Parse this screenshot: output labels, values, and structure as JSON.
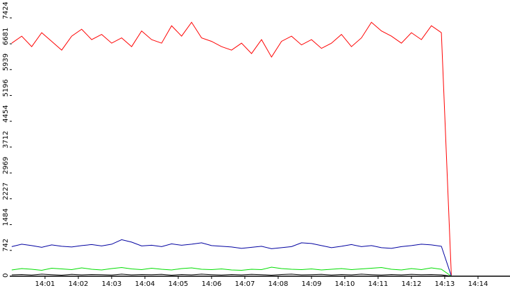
{
  "chart_data": {
    "type": "line",
    "x": [
      0,
      0.3,
      0.6,
      0.9,
      1.2,
      1.5,
      1.8,
      2.1,
      2.4,
      2.7,
      3,
      3.3,
      3.6,
      3.9,
      4.2,
      4.5,
      4.8,
      5.1,
      5.4,
      5.7,
      6,
      6.3,
      6.6,
      6.9,
      7.2,
      7.5,
      7.8,
      8.1,
      8.4,
      8.7,
      9,
      9.3,
      9.6,
      9.9,
      10.2,
      10.5,
      10.8,
      11.1,
      11.4,
      11.7,
      12,
      12.3,
      12.6,
      12.9,
      13.2
    ],
    "series": [
      {
        "color": "#ff0000",
        "values": [
          6700,
          6900,
          6600,
          7000,
          6750,
          6500,
          6900,
          7100,
          6800,
          6950,
          6700,
          6850,
          6600,
          7050,
          6800,
          6700,
          7200,
          6900,
          7300,
          6850,
          6750,
          6600,
          6500,
          6700,
          6400,
          6800,
          6300,
          6750,
          6900,
          6650,
          6800,
          6550,
          6700,
          6950,
          6600,
          6850,
          7300,
          7050,
          6900,
          6700,
          7000,
          6800,
          7200,
          7000,
          0
        ]
      },
      {
        "color": "#0000a0",
        "values": [
          850,
          920,
          880,
          830,
          900,
          860,
          840,
          880,
          910,
          870,
          920,
          1050,
          980,
          870,
          890,
          850,
          930,
          890,
          920,
          960,
          880,
          860,
          840,
          800,
          830,
          860,
          790,
          820,
          850,
          960,
          940,
          880,
          820,
          860,
          910,
          850,
          880,
          820,
          800,
          850,
          880,
          920,
          900,
          860,
          0
        ]
      },
      {
        "color": "#00dd00",
        "values": [
          180,
          220,
          200,
          170,
          230,
          210,
          190,
          240,
          200,
          180,
          220,
          250,
          210,
          190,
          230,
          200,
          180,
          220,
          240,
          200,
          190,
          210,
          180,
          170,
          200,
          190,
          260,
          220,
          200,
          190,
          210,
          180,
          200,
          220,
          190,
          210,
          230,
          250,
          200,
          180,
          220,
          190,
          240,
          200,
          0
        ]
      },
      {
        "color": "#000000",
        "values": [
          40,
          50,
          35,
          60,
          45,
          30,
          55,
          40,
          50,
          45,
          35,
          60,
          40,
          50,
          45,
          55,
          30,
          50,
          40,
          60,
          45,
          35,
          50,
          40,
          55,
          45,
          30,
          50,
          60,
          40,
          45,
          55,
          35,
          50,
          40,
          60,
          45,
          35,
          50,
          40,
          55,
          45,
          50,
          40,
          0
        ]
      }
    ],
    "xlim": [
      -0.06,
      14.96
    ],
    "xticks": [
      {
        "value": 1,
        "label": "14:01"
      },
      {
        "value": 2,
        "label": "14:02"
      },
      {
        "value": 3,
        "label": "14:03"
      },
      {
        "value": 4,
        "label": "14:04"
      },
      {
        "value": 5,
        "label": "14:05"
      },
      {
        "value": 6,
        "label": "14:06"
      },
      {
        "value": 7,
        "label": "14:07"
      },
      {
        "value": 8,
        "label": "14:08"
      },
      {
        "value": 9,
        "label": "14:09"
      },
      {
        "value": 10,
        "label": "14:10"
      },
      {
        "value": 11,
        "label": "14:11"
      },
      {
        "value": 12,
        "label": "14:12"
      },
      {
        "value": 13,
        "label": "14:13"
      },
      {
        "value": 14,
        "label": "14:14"
      }
    ],
    "ylim": [
      0,
      7900
    ],
    "yticks": [
      0,
      742,
      1484,
      2227,
      2969,
      3712,
      4454,
      5196,
      5939,
      6681,
      7424
    ]
  }
}
